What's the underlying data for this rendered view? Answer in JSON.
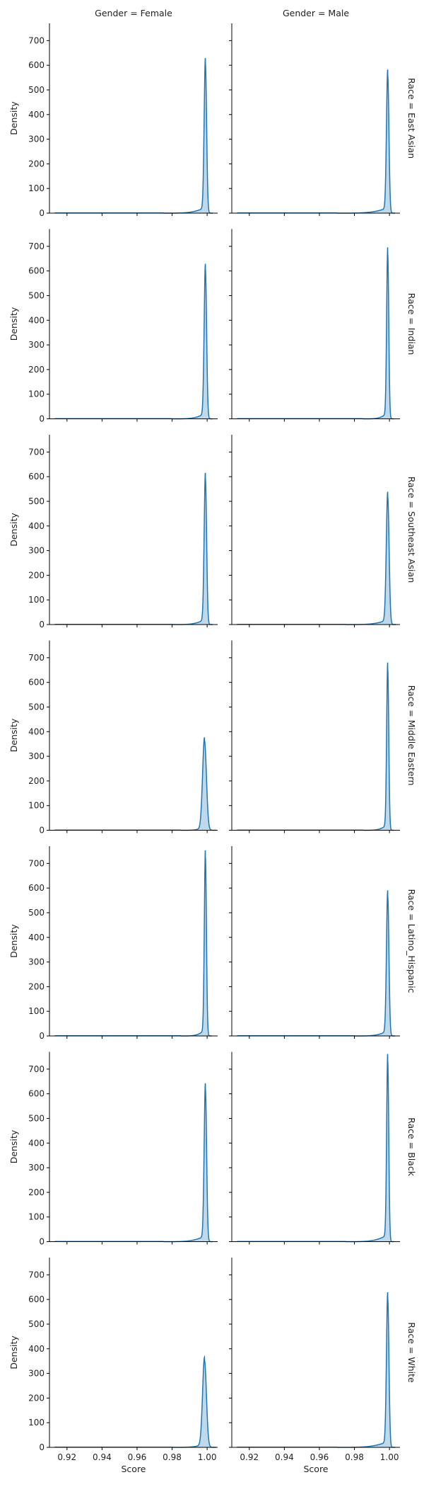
{
  "chart_data": {
    "type": "area",
    "facet_columns": [
      "Gender = Female",
      "Gender = Male"
    ],
    "facet_rows": [
      "Race = East Asian",
      "Race = Indian",
      "Race = Southeast Asian",
      "Race = Middle Eastern",
      "Race = Latino_Hispanic",
      "Race = Black",
      "Race = White"
    ],
    "xlabel": "Score",
    "ylabel": "Density",
    "xlim": [
      0.91,
      1.006
    ],
    "ylim": [
      0,
      770
    ],
    "xticks": [
      0.92,
      0.94,
      0.96,
      0.98,
      1.0
    ],
    "xtick_labels": [
      "0.92",
      "0.94",
      "0.96",
      "0.98",
      "1.00"
    ],
    "yticks": [
      0,
      100,
      200,
      300,
      400,
      500,
      600,
      700
    ],
    "ytick_labels": [
      "0",
      "100",
      "200",
      "300",
      "400",
      "500",
      "600",
      "700"
    ],
    "grid": false,
    "line_color": "#1f77b4",
    "fill_color": "#a9cbe3",
    "panels": [
      {
        "row": "Race = East Asian",
        "col": "Gender = Female",
        "x_min": 0.913,
        "tail_start": 0.975,
        "peak_x": 0.999,
        "peak_density": 605,
        "width": 0.0007
      },
      {
        "row": "Race = East Asian",
        "col": "Gender = Male",
        "x_min": 0.913,
        "tail_start": 0.97,
        "peak_x": 0.999,
        "peak_density": 560,
        "width": 0.0007
      },
      {
        "row": "Race = Indian",
        "col": "Gender = Female",
        "x_min": 0.913,
        "tail_start": 0.98,
        "peak_x": 0.999,
        "peak_density": 605,
        "width": 0.0007
      },
      {
        "row": "Race = Indian",
        "col": "Gender = Male",
        "x_min": 0.913,
        "tail_start": 0.985,
        "peak_x": 0.999,
        "peak_density": 670,
        "width": 0.0006
      },
      {
        "row": "Race = Southeast Asian",
        "col": "Gender = Female",
        "x_min": 0.913,
        "tail_start": 0.98,
        "peak_x": 0.999,
        "peak_density": 592,
        "width": 0.0007
      },
      {
        "row": "Race = Southeast Asian",
        "col": "Gender = Male",
        "x_min": 0.913,
        "tail_start": 0.975,
        "peak_x": 0.999,
        "peak_density": 518,
        "width": 0.0008
      },
      {
        "row": "Race = Middle Eastern",
        "col": "Gender = Female",
        "x_min": 0.913,
        "tail_start": 0.985,
        "peak_x": 0.9985,
        "peak_density": 362,
        "width": 0.0011
      },
      {
        "row": "Race = Middle Eastern",
        "col": "Gender = Male",
        "x_min": 0.913,
        "tail_start": 0.985,
        "peak_x": 0.999,
        "peak_density": 655,
        "width": 0.0006
      },
      {
        "row": "Race = Latino_Hispanic",
        "col": "Gender = Female",
        "x_min": 0.913,
        "tail_start": 0.985,
        "peak_x": 0.999,
        "peak_density": 725,
        "width": 0.0006
      },
      {
        "row": "Race = Latino_Hispanic",
        "col": "Gender = Male",
        "x_min": 0.913,
        "tail_start": 0.98,
        "peak_x": 0.999,
        "peak_density": 568,
        "width": 0.0007
      },
      {
        "row": "Race = Black",
        "col": "Gender = Female",
        "x_min": 0.913,
        "tail_start": 0.975,
        "peak_x": 0.999,
        "peak_density": 618,
        "width": 0.0007
      },
      {
        "row": "Race = Black",
        "col": "Gender = Male",
        "x_min": 0.913,
        "tail_start": 0.975,
        "peak_x": 0.999,
        "peak_density": 733,
        "width": 0.0006
      },
      {
        "row": "Race = White",
        "col": "Gender = Female",
        "x_min": 0.913,
        "tail_start": 0.98,
        "peak_x": 0.9985,
        "peak_density": 352,
        "width": 0.0011
      },
      {
        "row": "Race = White",
        "col": "Gender = Male",
        "x_min": 0.913,
        "tail_start": 0.97,
        "peak_x": 0.999,
        "peak_density": 605,
        "width": 0.0007
      }
    ]
  }
}
